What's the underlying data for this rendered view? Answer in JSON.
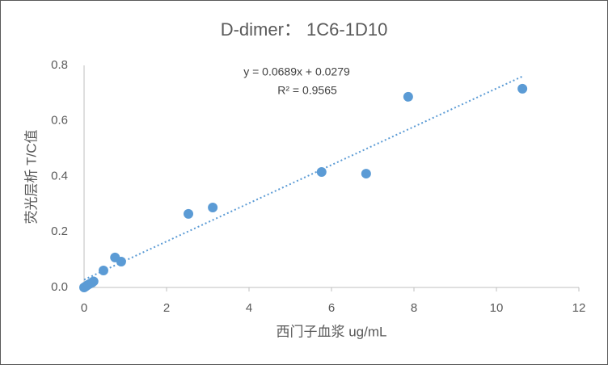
{
  "chart_data": {
    "type": "scatter",
    "title": "D-dimer： 1C6-1D10",
    "x_label": "西门子血浆 ug/mL",
    "y_label": "荧光层析 T/C值",
    "series": [
      {
        "color": "#5b9bd5",
        "x": [
          0.0,
          0.03,
          0.06,
          0.1,
          0.15,
          0.2,
          0.23,
          0.47,
          0.75,
          0.9,
          2.53,
          3.12,
          5.76,
          6.84,
          7.86,
          10.63
        ],
        "values": [
          0.0,
          0.003,
          0.006,
          0.01,
          0.014,
          0.018,
          0.022,
          0.061,
          0.108,
          0.093,
          0.265,
          0.288,
          0.416,
          0.41,
          0.687,
          0.716
        ]
      }
    ],
    "trendline": {
      "slope": 0.0689,
      "intercept": 0.0279,
      "equation": "y = 0.0689x + 0.0279",
      "r2": "R² = 0.9565",
      "color": "#5b9bd5"
    },
    "xlim": [
      0,
      12
    ],
    "xticks": [
      0,
      2,
      4,
      6,
      8,
      10,
      12
    ],
    "ylim": [
      0,
      0.8
    ],
    "yticks": [
      {
        "value": 0,
        "label": "0.0"
      },
      0.2,
      0.4,
      0.6,
      0.8
    ],
    "grid": false
  }
}
